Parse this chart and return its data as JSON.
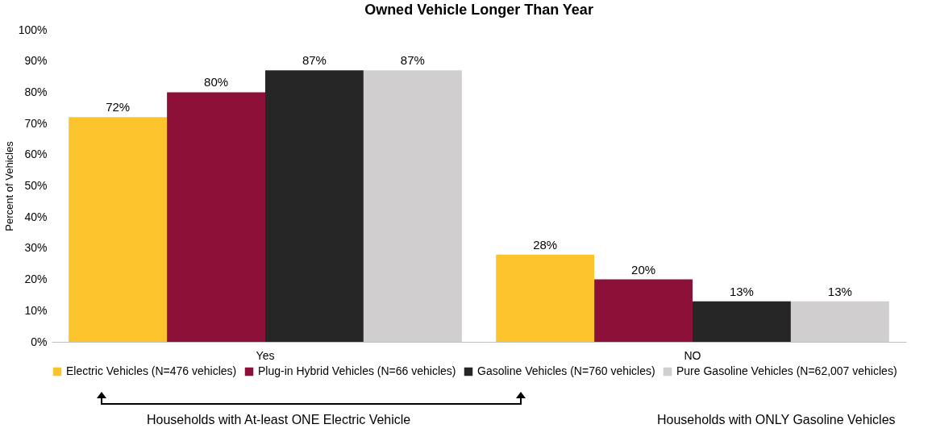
{
  "chart_data": {
    "type": "bar",
    "title": "Owned Vehicle Longer Than Year",
    "ylabel": "Percent of Vehicles",
    "categories": [
      "Yes",
      "NO"
    ],
    "series": [
      {
        "name": "Electric Vehicles (N=476 vehicles)",
        "color": "#fcc42c",
        "values": [
          72,
          28
        ],
        "value_labels": [
          "72%",
          "28%"
        ]
      },
      {
        "name": "Plug-in Hybrid Vehicles (N=66 vehicles)",
        "color": "#8c1038",
        "values": [
          80,
          20
        ],
        "value_labels": [
          "80%",
          "20%"
        ]
      },
      {
        "name": "Gasoline Vehicles (N=760 vehicles)",
        "color": "#262626",
        "values": [
          87,
          13
        ],
        "value_labels": [
          "87%",
          "13%"
        ]
      },
      {
        "name": "Pure Gasoline Vehicles  (N=62,007 vehicles)",
        "color": "#d0cecf",
        "values": [
          87,
          13
        ],
        "value_labels": [
          "87%",
          "13%"
        ]
      }
    ],
    "ylim": [
      0,
      100
    ],
    "yticks": [
      {
        "value": 0,
        "label": "0%"
      },
      {
        "value": 10,
        "label": "10%"
      },
      {
        "value": 20,
        "label": "20%"
      },
      {
        "value": 30,
        "label": "30%"
      },
      {
        "value": 40,
        "label": "40%"
      },
      {
        "value": 50,
        "label": "50%"
      },
      {
        "value": 60,
        "label": "60%"
      },
      {
        "value": 70,
        "label": "70%"
      },
      {
        "value": 80,
        "label": "80%"
      },
      {
        "value": 90,
        "label": "90%"
      },
      {
        "value": 100,
        "label": "100%"
      }
    ],
    "grid": false,
    "legend": "bottom",
    "annotations": [
      "Households with At-least ONE Electric Vehicle",
      "Households with ONLY Gasoline Vehicles"
    ]
  }
}
